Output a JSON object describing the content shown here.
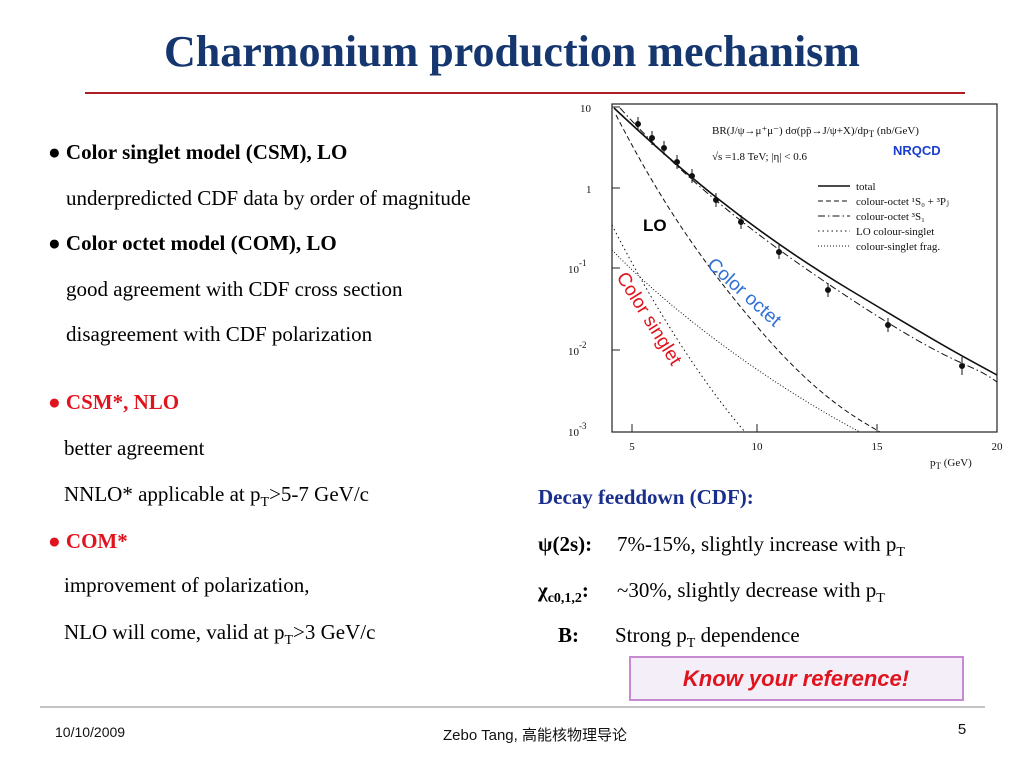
{
  "title": "Charmonium production mechanism",
  "left": {
    "csm_lo": {
      "head": "● Color singlet model (CSM), LO",
      "line1": "underpredicted CDF data by order of magnitude"
    },
    "com_lo": {
      "head": "● Color octet model (COM), LO",
      "line1": "good agreement with CDF cross section",
      "line2": "disagreement with CDF polarization"
    },
    "csm_nlo": {
      "head": "● CSM*, NLO",
      "line1": "better agreement",
      "line2": {
        "a": "NNLO* applicable at p",
        "sub": "T",
        "b": ">5-7 GeV/c"
      }
    },
    "com_nlo": {
      "head": "● COM*",
      "line1": "improvement of polarization,",
      "line2": {
        "a": "NLO will come, valid at p",
        "sub": "T",
        "b": ">3 GeV/c"
      }
    }
  },
  "feeddown": {
    "head": "Decay feeddown (CDF):",
    "psi": {
      "label": "ψ(2s):",
      "a": "7%-15%, slightly increase with p",
      "sub": "T"
    },
    "chi": {
      "label": "χ",
      "label_sub": "c0,1,2",
      "colon": ":",
      "a": "~30%, slightly decrease with p",
      "sub": "T"
    },
    "b": {
      "label": "B:",
      "a": "Strong p",
      "sub": "T",
      "b": " dependence"
    }
  },
  "note": "Know your reference!",
  "figure": {
    "header": {
      "a": "BR(J/ψ→μ⁺μ⁻) dσ(pp̄→J/ψ+X)/dp",
      "sub": "T",
      "b": " (nb/GeV)"
    },
    "conditions": "√s =1.8 TeV; |η| < 0.6",
    "legend": [
      "total",
      "colour-octet ¹S₀ + ³Pⱼ",
      "colour-octet ³S₁",
      "LO colour-singlet",
      "colour-singlet frag."
    ],
    "yticks": [
      {
        "base": "10"
      },
      {
        "base": "1"
      },
      {
        "base": "10",
        "exp": "-1"
      },
      {
        "base": "10",
        "exp": "-2"
      },
      {
        "base": "10",
        "exp": "-3"
      }
    ],
    "xticks": [
      "5",
      "10",
      "15",
      "20"
    ],
    "xlabel": {
      "a": "p",
      "sub": "T",
      "b": " (GeV)"
    },
    "nrqcd": "NRQCD",
    "lo": "LO",
    "octet": "Color octet",
    "singlet": "Color singlet"
  },
  "footer": {
    "date": "10/10/2009",
    "author": "Zebo Tang, 高能核物理导论",
    "page": "5"
  }
}
